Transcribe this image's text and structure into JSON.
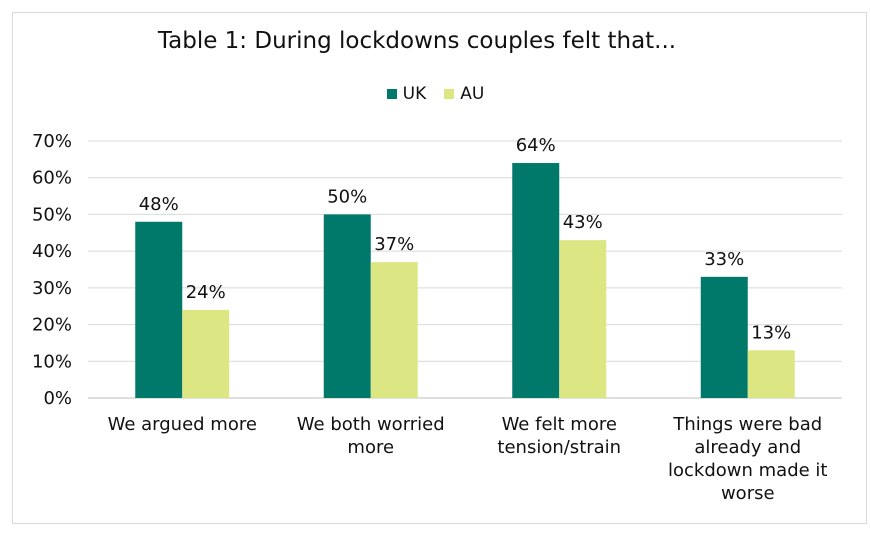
{
  "chart_data": {
    "type": "bar",
    "title": "Table 1: During lockdowns couples felt that...",
    "xlabel": "",
    "ylabel": "",
    "ylim": [
      0,
      0.7
    ],
    "y_ticks": [
      "0%",
      "10%",
      "20%",
      "30%",
      "40%",
      "50%",
      "60%",
      "70%"
    ],
    "y_tick_values": [
      0,
      0.1,
      0.2,
      0.3,
      0.4,
      0.5,
      0.6,
      0.7
    ],
    "grid": true,
    "legend_position": "top",
    "categories": [
      [
        "We argued more"
      ],
      [
        "We both worried",
        "more"
      ],
      [
        "We felt more",
        "tension/strain"
      ],
      [
        "Things were bad",
        "already and",
        "lockdown made it",
        "worse"
      ]
    ],
    "series": [
      {
        "name": "UK",
        "color": "#00796b",
        "values": [
          0.48,
          0.5,
          0.64,
          0.33
        ],
        "labels": [
          "48%",
          "50%",
          "64%",
          "33%"
        ]
      },
      {
        "name": "AU",
        "color": "#dce783",
        "values": [
          0.24,
          0.37,
          0.43,
          0.13
        ],
        "labels": [
          "24%",
          "37%",
          "43%",
          "13%"
        ]
      }
    ]
  }
}
